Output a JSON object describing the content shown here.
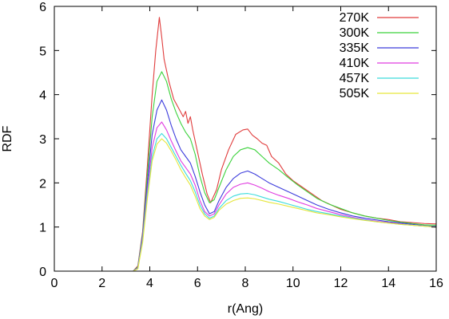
{
  "chart_data": {
    "type": "line",
    "title": "",
    "xlabel": "r(Ang)",
    "ylabel": "RDF",
    "xlim": [
      0,
      16
    ],
    "ylim": [
      0,
      6
    ],
    "xticks": [
      0,
      2,
      4,
      6,
      8,
      10,
      12,
      14,
      16
    ],
    "yticks": [
      0,
      1,
      2,
      3,
      4,
      5,
      6
    ],
    "grid": false,
    "legend_position": "top-right",
    "series": [
      {
        "name": "270K",
        "color": "#e03c3c",
        "points": [
          [
            0,
            0
          ],
          [
            3.3,
            0
          ],
          [
            3.5,
            0.12
          ],
          [
            3.7,
            0.9
          ],
          [
            3.9,
            2.4
          ],
          [
            4.1,
            4.0
          ],
          [
            4.25,
            5.0
          ],
          [
            4.4,
            5.75
          ],
          [
            4.5,
            5.3
          ],
          [
            4.6,
            4.8
          ],
          [
            4.8,
            4.3
          ],
          [
            5.0,
            3.9
          ],
          [
            5.2,
            3.7
          ],
          [
            5.4,
            3.5
          ],
          [
            5.5,
            3.62
          ],
          [
            5.6,
            3.35
          ],
          [
            5.7,
            3.5
          ],
          [
            5.8,
            3.2
          ],
          [
            6.0,
            2.7
          ],
          [
            6.2,
            2.2
          ],
          [
            6.4,
            1.75
          ],
          [
            6.55,
            1.55
          ],
          [
            6.8,
            1.85
          ],
          [
            7.0,
            2.3
          ],
          [
            7.3,
            2.75
          ],
          [
            7.6,
            3.1
          ],
          [
            7.9,
            3.2
          ],
          [
            8.1,
            3.22
          ],
          [
            8.3,
            3.08
          ],
          [
            8.5,
            3.0
          ],
          [
            8.7,
            2.9
          ],
          [
            8.9,
            2.85
          ],
          [
            9.1,
            2.6
          ],
          [
            9.4,
            2.45
          ],
          [
            9.7,
            2.2
          ],
          [
            10.0,
            2.05
          ],
          [
            10.4,
            1.9
          ],
          [
            10.8,
            1.75
          ],
          [
            11.2,
            1.6
          ],
          [
            11.6,
            1.5
          ],
          [
            12.0,
            1.4
          ],
          [
            12.5,
            1.32
          ],
          [
            13.0,
            1.25
          ],
          [
            13.5,
            1.2
          ],
          [
            14.0,
            1.17
          ],
          [
            14.5,
            1.12
          ],
          [
            15.0,
            1.1
          ],
          [
            15.5,
            1.08
          ],
          [
            16.0,
            1.07
          ]
        ]
      },
      {
        "name": "300K",
        "color": "#3cd23c",
        "points": [
          [
            0,
            0
          ],
          [
            3.3,
            0
          ],
          [
            3.5,
            0.1
          ],
          [
            3.7,
            0.85
          ],
          [
            3.9,
            2.2
          ],
          [
            4.1,
            3.5
          ],
          [
            4.3,
            4.3
          ],
          [
            4.5,
            4.52
          ],
          [
            4.7,
            4.3
          ],
          [
            4.9,
            3.9
          ],
          [
            5.1,
            3.6
          ],
          [
            5.3,
            3.35
          ],
          [
            5.5,
            3.15
          ],
          [
            5.7,
            3.0
          ],
          [
            5.9,
            2.65
          ],
          [
            6.1,
            2.15
          ],
          [
            6.3,
            1.78
          ],
          [
            6.5,
            1.55
          ],
          [
            6.7,
            1.62
          ],
          [
            6.9,
            1.9
          ],
          [
            7.2,
            2.3
          ],
          [
            7.5,
            2.6
          ],
          [
            7.8,
            2.75
          ],
          [
            8.1,
            2.8
          ],
          [
            8.4,
            2.75
          ],
          [
            8.7,
            2.6
          ],
          [
            9.0,
            2.45
          ],
          [
            9.4,
            2.3
          ],
          [
            9.8,
            2.12
          ],
          [
            10.2,
            1.95
          ],
          [
            10.6,
            1.8
          ],
          [
            11.0,
            1.65
          ],
          [
            11.5,
            1.52
          ],
          [
            12.0,
            1.42
          ],
          [
            12.5,
            1.32
          ],
          [
            13.0,
            1.25
          ],
          [
            13.5,
            1.2
          ],
          [
            14.0,
            1.15
          ],
          [
            14.5,
            1.11
          ],
          [
            15.0,
            1.08
          ],
          [
            15.5,
            1.05
          ],
          [
            16.0,
            1.04
          ]
        ]
      },
      {
        "name": "335K",
        "color": "#3c3cdc",
        "points": [
          [
            0,
            0
          ],
          [
            3.3,
            0
          ],
          [
            3.5,
            0.08
          ],
          [
            3.7,
            0.8
          ],
          [
            3.9,
            2.0
          ],
          [
            4.1,
            3.1
          ],
          [
            4.3,
            3.65
          ],
          [
            4.5,
            3.88
          ],
          [
            4.7,
            3.65
          ],
          [
            4.9,
            3.3
          ],
          [
            5.1,
            3.0
          ],
          [
            5.3,
            2.75
          ],
          [
            5.5,
            2.6
          ],
          [
            5.7,
            2.45
          ],
          [
            5.9,
            2.15
          ],
          [
            6.1,
            1.8
          ],
          [
            6.3,
            1.5
          ],
          [
            6.5,
            1.3
          ],
          [
            6.7,
            1.35
          ],
          [
            6.9,
            1.6
          ],
          [
            7.2,
            1.9
          ],
          [
            7.5,
            2.1
          ],
          [
            7.8,
            2.22
          ],
          [
            8.1,
            2.27
          ],
          [
            8.4,
            2.2
          ],
          [
            8.7,
            2.1
          ],
          [
            9.0,
            2.0
          ],
          [
            9.4,
            1.9
          ],
          [
            9.8,
            1.8
          ],
          [
            10.2,
            1.7
          ],
          [
            10.6,
            1.6
          ],
          [
            11.0,
            1.5
          ],
          [
            11.5,
            1.4
          ],
          [
            12.0,
            1.32
          ],
          [
            12.5,
            1.25
          ],
          [
            13.0,
            1.2
          ],
          [
            13.5,
            1.16
          ],
          [
            14.0,
            1.12
          ],
          [
            14.5,
            1.09
          ],
          [
            15.0,
            1.06
          ],
          [
            15.5,
            1.03
          ],
          [
            16.0,
            1.01
          ]
        ]
      },
      {
        "name": "410K",
        "color": "#e03ce0",
        "points": [
          [
            0,
            0
          ],
          [
            3.3,
            0
          ],
          [
            3.5,
            0.07
          ],
          [
            3.7,
            0.75
          ],
          [
            3.9,
            1.85
          ],
          [
            4.1,
            2.8
          ],
          [
            4.3,
            3.25
          ],
          [
            4.5,
            3.38
          ],
          [
            4.7,
            3.2
          ],
          [
            4.9,
            2.95
          ],
          [
            5.1,
            2.72
          ],
          [
            5.3,
            2.5
          ],
          [
            5.5,
            2.35
          ],
          [
            5.7,
            2.2
          ],
          [
            5.9,
            1.95
          ],
          [
            6.1,
            1.6
          ],
          [
            6.3,
            1.35
          ],
          [
            6.5,
            1.25
          ],
          [
            6.7,
            1.3
          ],
          [
            6.9,
            1.5
          ],
          [
            7.2,
            1.75
          ],
          [
            7.5,
            1.9
          ],
          [
            7.8,
            1.97
          ],
          [
            8.1,
            2.0
          ],
          [
            8.4,
            1.95
          ],
          [
            8.7,
            1.88
          ],
          [
            9.0,
            1.8
          ],
          [
            9.4,
            1.72
          ],
          [
            9.8,
            1.65
          ],
          [
            10.2,
            1.57
          ],
          [
            10.6,
            1.5
          ],
          [
            11.0,
            1.42
          ],
          [
            11.5,
            1.35
          ],
          [
            12.0,
            1.28
          ],
          [
            12.5,
            1.22
          ],
          [
            13.0,
            1.17
          ],
          [
            13.5,
            1.13
          ],
          [
            14.0,
            1.1
          ],
          [
            14.5,
            1.07
          ],
          [
            15.0,
            1.04
          ],
          [
            15.5,
            1.02
          ],
          [
            16.0,
            1.0
          ]
        ]
      },
      {
        "name": "457K",
        "color": "#3cdcdc",
        "points": [
          [
            0,
            0
          ],
          [
            3.3,
            0
          ],
          [
            3.5,
            0.06
          ],
          [
            3.7,
            0.7
          ],
          [
            3.9,
            1.75
          ],
          [
            4.1,
            2.6
          ],
          [
            4.3,
            3.0
          ],
          [
            4.5,
            3.12
          ],
          [
            4.7,
            3.0
          ],
          [
            4.9,
            2.8
          ],
          [
            5.1,
            2.6
          ],
          [
            5.3,
            2.4
          ],
          [
            5.5,
            2.22
          ],
          [
            5.7,
            2.05
          ],
          [
            5.9,
            1.8
          ],
          [
            6.1,
            1.5
          ],
          [
            6.3,
            1.3
          ],
          [
            6.5,
            1.2
          ],
          [
            6.7,
            1.25
          ],
          [
            6.9,
            1.42
          ],
          [
            7.2,
            1.6
          ],
          [
            7.5,
            1.7
          ],
          [
            7.8,
            1.75
          ],
          [
            8.1,
            1.76
          ],
          [
            8.4,
            1.73
          ],
          [
            8.7,
            1.68
          ],
          [
            9.0,
            1.63
          ],
          [
            9.4,
            1.58
          ],
          [
            9.8,
            1.52
          ],
          [
            10.2,
            1.46
          ],
          [
            10.6,
            1.4
          ],
          [
            11.0,
            1.35
          ],
          [
            11.5,
            1.3
          ],
          [
            12.0,
            1.25
          ],
          [
            12.5,
            1.2
          ],
          [
            13.0,
            1.16
          ],
          [
            13.5,
            1.12
          ],
          [
            14.0,
            1.09
          ],
          [
            14.5,
            1.06
          ],
          [
            15.0,
            1.04
          ],
          [
            15.5,
            1.02
          ],
          [
            16.0,
            1.0
          ]
        ]
      },
      {
        "name": "505K",
        "color": "#e6e63c",
        "points": [
          [
            0,
            0
          ],
          [
            3.3,
            0
          ],
          [
            3.5,
            0.05
          ],
          [
            3.7,
            0.65
          ],
          [
            3.9,
            1.65
          ],
          [
            4.1,
            2.5
          ],
          [
            4.3,
            2.88
          ],
          [
            4.5,
            3.0
          ],
          [
            4.7,
            2.9
          ],
          [
            4.9,
            2.72
          ],
          [
            5.1,
            2.52
          ],
          [
            5.3,
            2.3
          ],
          [
            5.5,
            2.12
          ],
          [
            5.7,
            1.95
          ],
          [
            5.9,
            1.7
          ],
          [
            6.1,
            1.42
          ],
          [
            6.3,
            1.25
          ],
          [
            6.5,
            1.17
          ],
          [
            6.7,
            1.22
          ],
          [
            6.9,
            1.38
          ],
          [
            7.2,
            1.52
          ],
          [
            7.5,
            1.6
          ],
          [
            7.8,
            1.65
          ],
          [
            8.1,
            1.66
          ],
          [
            8.4,
            1.64
          ],
          [
            8.7,
            1.6
          ],
          [
            9.0,
            1.56
          ],
          [
            9.4,
            1.52
          ],
          [
            9.8,
            1.47
          ],
          [
            10.2,
            1.42
          ],
          [
            10.6,
            1.37
          ],
          [
            11.0,
            1.32
          ],
          [
            11.5,
            1.28
          ],
          [
            12.0,
            1.23
          ],
          [
            12.5,
            1.19
          ],
          [
            13.0,
            1.15
          ],
          [
            13.5,
            1.12
          ],
          [
            14.0,
            1.09
          ],
          [
            14.5,
            1.06
          ],
          [
            15.0,
            1.04
          ],
          [
            15.5,
            1.02
          ],
          [
            16.0,
            1.0
          ]
        ]
      }
    ]
  }
}
